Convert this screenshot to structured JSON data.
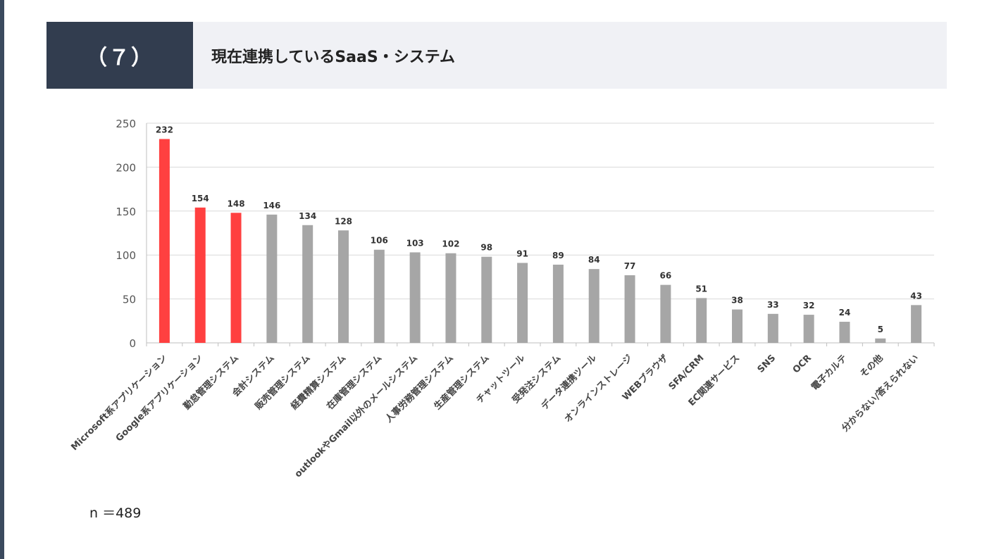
{
  "header": {
    "badge": "（７）",
    "title": "現在連携しているSaaS・システム"
  },
  "footer": {
    "sample_size": "n ＝489"
  },
  "colors": {
    "highlight": "#ff4040",
    "default_bar": "#a6a6a6",
    "header_dark": "#323d4f",
    "header_light": "#f0f1f5"
  },
  "chart_data": {
    "type": "bar",
    "title": "",
    "xlabel": "",
    "ylabel": "",
    "ylim": [
      0,
      250
    ],
    "yticks": [
      0,
      50,
      100,
      150,
      200,
      250
    ],
    "grid": true,
    "categories": [
      "Microsoft系アプリケーション",
      "Google系アプリケーション",
      "勤怠管理システム",
      "会計システム",
      "販売管理システム",
      "経費精算システム",
      "在庫管理システム",
      "outlookやGmail以外のメールシステム",
      "人事労務管理システム",
      "生産管理システム",
      "チャットツール",
      "受発注システム",
      "データ連携ツール",
      "オンラインストレージ",
      "WEBブラウザ",
      "SFA/CRM",
      "EC関連サービス",
      "SNS",
      "OCR",
      "電子カルテ",
      "その他",
      "分からない/答えられない"
    ],
    "values": [
      232,
      154,
      148,
      146,
      134,
      128,
      106,
      103,
      102,
      98,
      91,
      89,
      84,
      77,
      66,
      51,
      38,
      33,
      32,
      24,
      5,
      43
    ],
    "highlighted": [
      true,
      true,
      true,
      false,
      false,
      false,
      false,
      false,
      false,
      false,
      false,
      false,
      false,
      false,
      false,
      false,
      false,
      false,
      false,
      false,
      false,
      false
    ]
  }
}
